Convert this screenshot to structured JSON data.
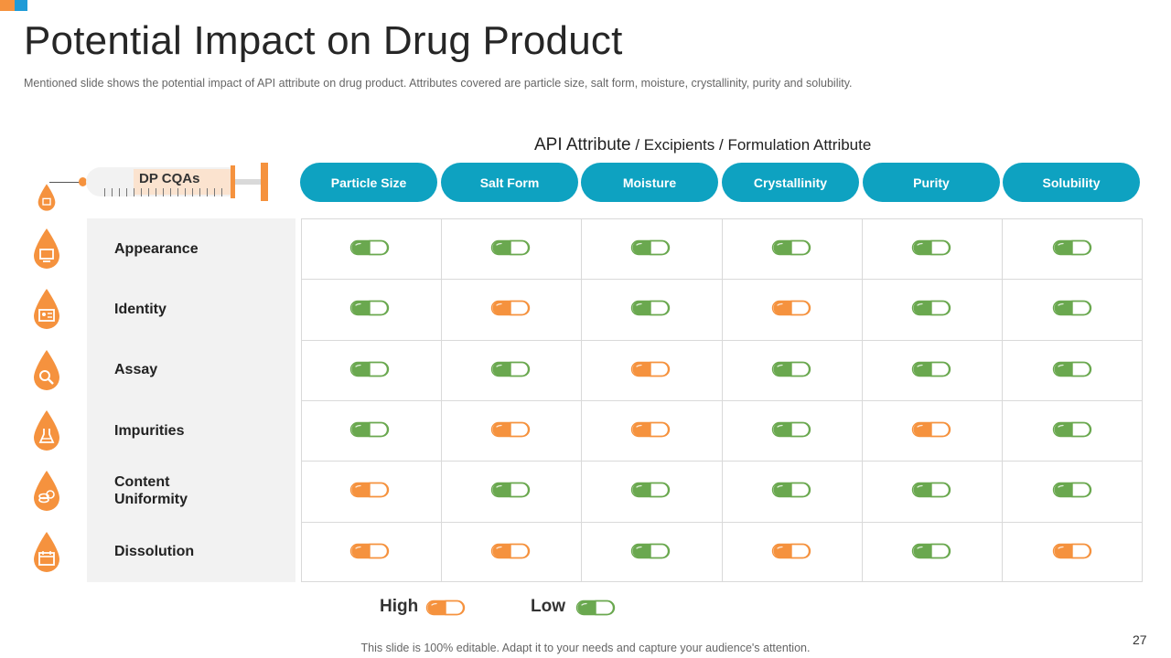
{
  "slide": {
    "title": "Potential Impact on Drug Product",
    "subtitle": "Mentioned slide shows the potential impact of API attribute on drug product. Attributes covered are particle size, salt form, moisture, crystallinity, purity and solubility.",
    "api_heading": {
      "main": "API Attribute",
      "part2": " / Excipients",
      "part3": " / Formulation Attribute"
    },
    "syringe_label": "DP CQAs",
    "footer": "This slide is 100% editable. Adapt it to your needs and capture your audience's attention.",
    "page_number": "27"
  },
  "colors": {
    "accent_orange": "#f5923e",
    "accent_green": "#6aa84f",
    "header_blue": "#0ea2c1",
    "corner_blue": "#1f9bd7"
  },
  "columns": [
    "Particle Size",
    "Salt Form",
    "Moisture",
    "Crystallinity",
    "Purity",
    "Solubility"
  ],
  "rows": [
    {
      "label": "Appearance",
      "icon": "monitor-icon",
      "impacts": [
        "Low",
        "Low",
        "Low",
        "Low",
        "Low",
        "Low"
      ]
    },
    {
      "label": "Identity",
      "icon": "id-card-icon",
      "impacts": [
        "Low",
        "High",
        "Low",
        "High",
        "Low",
        "Low"
      ]
    },
    {
      "label": "Assay",
      "icon": "magnifier-icon",
      "impacts": [
        "Low",
        "Low",
        "High",
        "Low",
        "Low",
        "Low"
      ]
    },
    {
      "label": "Impurities",
      "icon": "flask-icon",
      "impacts": [
        "Low",
        "High",
        "High",
        "Low",
        "High",
        "Low"
      ]
    },
    {
      "label": "Content\nUniformity",
      "icon": "coins-icon",
      "impacts": [
        "High",
        "Low",
        "Low",
        "Low",
        "Low",
        "Low"
      ]
    },
    {
      "label": "Dissolution",
      "icon": "calendar-icon",
      "impacts": [
        "High",
        "High",
        "Low",
        "High",
        "Low",
        "High"
      ]
    }
  ],
  "legend": {
    "high_label": "High",
    "low_label": "Low"
  }
}
